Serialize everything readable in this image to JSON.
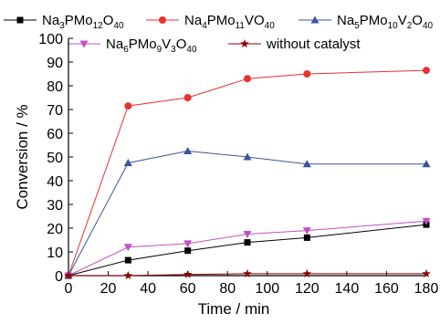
{
  "chart_data": {
    "type": "line",
    "xlabel": "Time / min",
    "ylabel": "Conversion / %",
    "xlim": [
      0,
      180
    ],
    "ylim": [
      0,
      100
    ],
    "x_ticks": [
      0,
      20,
      40,
      60,
      80,
      100,
      120,
      140,
      160,
      180
    ],
    "y_ticks": [
      0,
      10,
      20,
      30,
      40,
      50,
      60,
      70,
      80,
      90,
      100
    ],
    "grid": false,
    "legend_position": "top",
    "series": [
      {
        "name": "Na3PMo12O40",
        "name_parts": [
          [
            "Na",
            ""
          ],
          [
            "3",
            "sub"
          ],
          [
            "PMo",
            ""
          ],
          [
            "12",
            "sub"
          ],
          [
            "O",
            ""
          ],
          [
            "40",
            "sub"
          ]
        ],
        "color": "#000000",
        "marker": "square",
        "x": [
          0,
          30,
          60,
          90,
          120,
          180
        ],
        "values": [
          0,
          6.5,
          10.5,
          14,
          16,
          21.5
        ]
      },
      {
        "name": "Na4PMo11VO40",
        "name_parts": [
          [
            "Na",
            ""
          ],
          [
            "4",
            "sub"
          ],
          [
            "PMo",
            ""
          ],
          [
            "11",
            "sub"
          ],
          [
            "VO",
            ""
          ],
          [
            "40",
            "sub"
          ]
        ],
        "color": "#e8322d",
        "marker": "circle",
        "x": [
          0,
          30,
          60,
          90,
          120,
          180
        ],
        "values": [
          0,
          71.5,
          75,
          83,
          85,
          86.5
        ]
      },
      {
        "name": "Na5PMo10V2O40",
        "name_parts": [
          [
            "Na",
            ""
          ],
          [
            "5",
            "sub"
          ],
          [
            "PMo",
            ""
          ],
          [
            "10",
            "sub"
          ],
          [
            "V",
            ""
          ],
          [
            "2",
            "sub"
          ],
          [
            "O",
            ""
          ],
          [
            "40",
            "sub"
          ]
        ],
        "color": "#3a53a4",
        "marker": "triangle-up",
        "x": [
          0,
          30,
          60,
          90,
          120,
          180
        ],
        "values": [
          0,
          47.5,
          52.5,
          50,
          47,
          47
        ]
      },
      {
        "name": "Na6PMo9V3O40",
        "name_parts": [
          [
            "Na",
            ""
          ],
          [
            "6",
            "sub"
          ],
          [
            "PMo",
            ""
          ],
          [
            "9",
            "sub"
          ],
          [
            "V",
            ""
          ],
          [
            "3",
            "sub"
          ],
          [
            "O",
            ""
          ],
          [
            "40",
            "sub"
          ]
        ],
        "color": "#c34fc4",
        "marker": "triangle-down",
        "x": [
          0,
          30,
          60,
          90,
          120,
          180
        ],
        "values": [
          0,
          12,
          13.5,
          17.5,
          19,
          23
        ]
      },
      {
        "name": "without catalyst",
        "name_parts": [
          [
            "without catalyst",
            ""
          ]
        ],
        "color": "#8b0000",
        "marker": "star",
        "x": [
          0,
          30,
          60,
          90,
          120,
          180
        ],
        "values": [
          0,
          0,
          0.5,
          0.8,
          0.8,
          0.8
        ]
      }
    ]
  }
}
